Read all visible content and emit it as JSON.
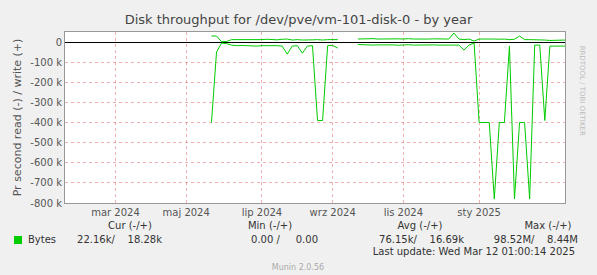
{
  "chart_data": {
    "type": "line",
    "title": "Disk throughput for /dev/pve/vm-101-disk-0 - by year",
    "y_label": "Pr second read (-) / write (+)",
    "categories": [
      null,
      null,
      null,
      null,
      null,
      null,
      null,
      null,
      null,
      null,
      "mar 2024",
      null,
      null,
      null,
      null,
      null,
      null,
      null,
      null,
      null,
      null,
      null,
      null,
      null,
      "maj 2024",
      null,
      null,
      null,
      null,
      null,
      null,
      null,
      null,
      null,
      null,
      null,
      null,
      null,
      null,
      "lip 2024",
      null,
      null,
      null,
      null,
      null,
      null,
      null,
      null,
      null,
      null,
      null,
      null,
      null,
      "wrz 2024",
      null,
      null,
      null,
      null,
      null,
      null,
      null,
      null,
      null,
      null,
      null,
      null,
      null,
      "lis 2024",
      null,
      null,
      null,
      null,
      null,
      null,
      null,
      null,
      null,
      null,
      null,
      null,
      null,
      null,
      "sty 2025",
      null,
      null,
      null,
      null,
      null,
      null,
      null,
      null,
      null,
      null,
      null,
      null,
      null,
      null,
      null,
      null,
      null
    ],
    "series": [
      {
        "name": "Bytes",
        "color": "#00cc00",
        "values": [
          null,
          null,
          null,
          null,
          null,
          null,
          null,
          null,
          null,
          null,
          null,
          null,
          null,
          null,
          null,
          null,
          null,
          null,
          null,
          null,
          null,
          null,
          null,
          null,
          null,
          null,
          null,
          null,
          null,
          -400000,
          -50000,
          -5000,
          -8000,
          -15000,
          -18000,
          -17000,
          -19000,
          -18000,
          -20000,
          -18000,
          -17000,
          -19000,
          -18000,
          -20000,
          -60000,
          -20000,
          -18000,
          -55000,
          -20000,
          -18000,
          -390000,
          -390000,
          -18000,
          -17000,
          -30000,
          null,
          null,
          null,
          -12000,
          -14000,
          -13000,
          -15000,
          -14000,
          -13000,
          -15000,
          -14000,
          -16000,
          -14000,
          -13000,
          -15000,
          -14000,
          -15000,
          -13000,
          -14000,
          -15000,
          -14000,
          -15000,
          -15000,
          -15000,
          -40000,
          -15000,
          -5000,
          -400000,
          -400000,
          -400000,
          -780000,
          -400000,
          -400000,
          -20000,
          -780000,
          -400000,
          -400000,
          -780000,
          -15000,
          -15000,
          -390000,
          -20000,
          -20000,
          -20000,
          -20000
        ]
      },
      {
        "name": "Bytes",
        "color": "#00cc00",
        "values": [
          null,
          null,
          null,
          null,
          null,
          null,
          null,
          null,
          null,
          null,
          null,
          null,
          null,
          null,
          null,
          null,
          null,
          null,
          null,
          null,
          null,
          null,
          null,
          null,
          null,
          null,
          null,
          null,
          null,
          30000,
          30000,
          2000,
          3000,
          12000,
          12000,
          11000,
          13000,
          12000,
          10000,
          12000,
          14000,
          12000,
          11000,
          14000,
          15000,
          10000,
          12000,
          10000,
          12000,
          11000,
          12000,
          10000,
          12000,
          11000,
          12000,
          null,
          null,
          null,
          15000,
          16000,
          15000,
          17000,
          15000,
          16000,
          14000,
          15000,
          16000,
          15000,
          17000,
          15000,
          14000,
          16000,
          15000,
          16000,
          15000,
          14000,
          15000,
          45000,
          15000,
          12000,
          15000,
          5000,
          15000,
          15000,
          16000,
          15000,
          14000,
          15000,
          12000,
          14000,
          30000,
          12000,
          12000,
          12000,
          10000,
          10000,
          8000,
          8000,
          8000,
          10000
        ]
      }
    ],
    "ylim": [
      -800000,
      50000
    ],
    "yticks": [
      0,
      {
        "value": -100000,
        "label": "-100 k"
      },
      {
        "value": -200000,
        "label": "-200 k"
      },
      {
        "value": -300000,
        "label": "-300 k"
      },
      {
        "value": -400000,
        "label": "-400 k"
      },
      {
        "value": -500000,
        "label": "-500 k"
      },
      {
        "value": -600000,
        "label": "-600 k"
      },
      {
        "value": -700000,
        "label": "-700 k"
      },
      {
        "value": -800000,
        "label": "-800 k"
      }
    ],
    "grid": true,
    "legend_table": {
      "header": [
        "Cur (-/+)",
        "Min (-/+)",
        "Avg (-/+)",
        "Max (-/+)"
      ],
      "rows": [
        {
          "name": "Bytes",
          "color": "#00cc00",
          "cells": [
            "22.16k/    18.28k",
            "0.00 /     0.00",
            "76.15k/    16.69k",
            "98.52M/    8.44M"
          ]
        }
      ]
    },
    "footer": "Last update: Wed Mar 12 01:00:14 2025",
    "credit": "Munin 2.0.56",
    "side_text": "RRDTOOL / TOBI OETIKER"
  }
}
